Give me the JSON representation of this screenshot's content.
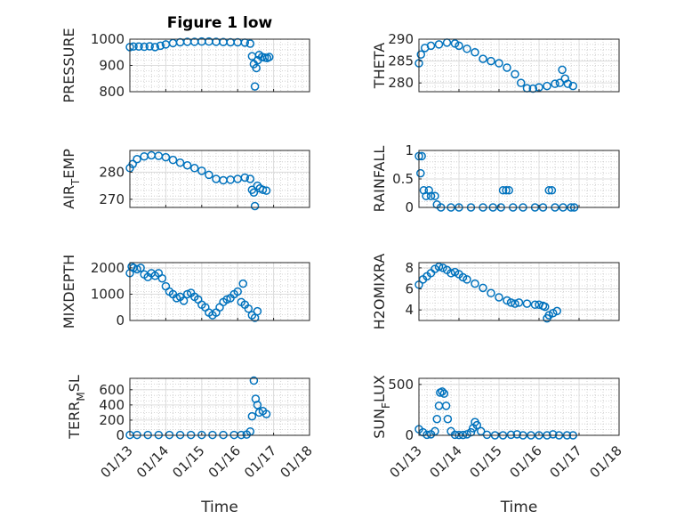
{
  "figure": {
    "title": "Figure 1 low",
    "marker_color": "#0072BD"
  },
  "chart_data": [
    {
      "type": "scatter",
      "title": "Figure 1 low",
      "ylabel": "PRESSURE",
      "xlabel": "",
      "ylim": [
        800,
        1000
      ],
      "yticks": [
        800,
        900,
        1000
      ],
      "xlim": [
        "01/13",
        "01/18"
      ],
      "xticks": [
        "01/13",
        "01/14",
        "01/15",
        "01/16",
        "01/17",
        "01/18"
      ],
      "grid": "minor-dotted",
      "points": [
        [
          0.0,
          970
        ],
        [
          0.1,
          972
        ],
        [
          0.25,
          972
        ],
        [
          0.4,
          971
        ],
        [
          0.55,
          973
        ],
        [
          0.7,
          970
        ],
        [
          0.85,
          975
        ],
        [
          1.0,
          980
        ],
        [
          1.2,
          985
        ],
        [
          1.4,
          988
        ],
        [
          1.6,
          990
        ],
        [
          1.8,
          990
        ],
        [
          2.0,
          991
        ],
        [
          2.2,
          991
        ],
        [
          2.4,
          990
        ],
        [
          2.6,
          989
        ],
        [
          2.8,
          988
        ],
        [
          3.0,
          988
        ],
        [
          3.2,
          987
        ],
        [
          3.35,
          983
        ],
        [
          3.4,
          935
        ],
        [
          3.45,
          905
        ],
        [
          3.48,
          820
        ],
        [
          3.52,
          890
        ],
        [
          3.56,
          920
        ],
        [
          3.6,
          940
        ],
        [
          3.68,
          932
        ],
        [
          3.75,
          930
        ],
        [
          3.82,
          928
        ],
        [
          3.88,
          932
        ]
      ]
    },
    {
      "type": "scatter",
      "ylabel": "THETA",
      "xlabel": "",
      "ylim": [
        278,
        290
      ],
      "yticks": [
        280,
        285,
        290
      ],
      "xlim": [
        "01/13",
        "01/18"
      ],
      "xticks": [
        "01/13",
        "01/14",
        "01/15",
        "01/16",
        "01/17",
        "01/18"
      ],
      "grid": "minor-dotted",
      "points": [
        [
          0.0,
          284.5
        ],
        [
          0.05,
          286.5
        ],
        [
          0.15,
          288
        ],
        [
          0.3,
          288.5
        ],
        [
          0.5,
          288.8
        ],
        [
          0.7,
          289.2
        ],
        [
          0.9,
          289.0
        ],
        [
          1.0,
          288.5
        ],
        [
          1.2,
          287.8
        ],
        [
          1.4,
          287.0
        ],
        [
          1.6,
          285.5
        ],
        [
          1.8,
          285.0
        ],
        [
          2.0,
          284.5
        ],
        [
          2.2,
          283.5
        ],
        [
          2.4,
          282.0
        ],
        [
          2.55,
          280.0
        ],
        [
          2.7,
          278.8
        ],
        [
          2.85,
          278.7
        ],
        [
          3.0,
          279.0
        ],
        [
          3.2,
          279.3
        ],
        [
          3.4,
          279.8
        ],
        [
          3.52,
          280.0
        ],
        [
          3.58,
          283.0
        ],
        [
          3.65,
          281.0
        ],
        [
          3.72,
          279.8
        ],
        [
          3.85,
          279.3
        ]
      ]
    },
    {
      "type": "scatter",
      "ylabel": "AIR_TEMP",
      "xlabel": "",
      "ylim": [
        267,
        288
      ],
      "yticks": [
        270,
        280
      ],
      "xlim": [
        "01/13",
        "01/18"
      ],
      "xticks": [
        "01/13",
        "01/14",
        "01/15",
        "01/16",
        "01/17",
        "01/18"
      ],
      "grid": "minor-dotted",
      "points": [
        [
          0.0,
          281.5
        ],
        [
          0.08,
          283.0
        ],
        [
          0.2,
          284.8
        ],
        [
          0.4,
          285.8
        ],
        [
          0.6,
          286.2
        ],
        [
          0.8,
          286.0
        ],
        [
          1.0,
          285.5
        ],
        [
          1.2,
          284.5
        ],
        [
          1.4,
          283.5
        ],
        [
          1.6,
          282.5
        ],
        [
          1.8,
          281.5
        ],
        [
          2.0,
          280.5
        ],
        [
          2.2,
          279.0
        ],
        [
          2.4,
          277.5
        ],
        [
          2.6,
          277.0
        ],
        [
          2.8,
          277.2
        ],
        [
          3.0,
          277.5
        ],
        [
          3.2,
          278.0
        ],
        [
          3.35,
          277.5
        ],
        [
          3.4,
          273.5
        ],
        [
          3.45,
          272.5
        ],
        [
          3.48,
          267.5
        ],
        [
          3.55,
          275.0
        ],
        [
          3.62,
          274.0
        ],
        [
          3.7,
          273.5
        ],
        [
          3.8,
          273.2
        ]
      ]
    },
    {
      "type": "scatter",
      "ylabel": "RAINFALL",
      "xlabel": "",
      "ylim": [
        0,
        1
      ],
      "yticks": [
        0,
        0.5,
        1
      ],
      "xlim": [
        "01/13",
        "01/18"
      ],
      "xticks": [
        "01/13",
        "01/14",
        "01/15",
        "01/16",
        "01/17",
        "01/18"
      ],
      "grid": "minor-dotted",
      "points": [
        [
          0.0,
          0.9
        ],
        [
          0.04,
          0.6
        ],
        [
          0.07,
          0.9
        ],
        [
          0.12,
          0.3
        ],
        [
          0.18,
          0.2
        ],
        [
          0.25,
          0.3
        ],
        [
          0.3,
          0.2
        ],
        [
          0.4,
          0.2
        ],
        [
          0.45,
          0.05
        ],
        [
          0.55,
          0
        ],
        [
          0.8,
          0
        ],
        [
          1.0,
          0
        ],
        [
          1.3,
          0
        ],
        [
          1.6,
          0
        ],
        [
          1.85,
          0
        ],
        [
          2.05,
          0
        ],
        [
          2.1,
          0.3
        ],
        [
          2.18,
          0.3
        ],
        [
          2.25,
          0.3
        ],
        [
          2.35,
          0
        ],
        [
          2.6,
          0
        ],
        [
          2.9,
          0
        ],
        [
          3.1,
          0
        ],
        [
          3.25,
          0.3
        ],
        [
          3.32,
          0.3
        ],
        [
          3.4,
          0
        ],
        [
          3.6,
          0
        ],
        [
          3.8,
          0
        ],
        [
          3.88,
          0
        ]
      ]
    },
    {
      "type": "scatter",
      "ylabel": "MIXDEPTH",
      "xlabel": "",
      "ylim": [
        0,
        2200
      ],
      "yticks": [
        0,
        1000,
        2000
      ],
      "xlim": [
        "01/13",
        "01/18"
      ],
      "xticks": [
        "01/13",
        "01/14",
        "01/15",
        "01/16",
        "01/17",
        "01/18"
      ],
      "grid": "minor-dotted",
      "points": [
        [
          0.0,
          1800
        ],
        [
          0.05,
          2050
        ],
        [
          0.1,
          2000
        ],
        [
          0.2,
          1950
        ],
        [
          0.3,
          2000
        ],
        [
          0.4,
          1750
        ],
        [
          0.5,
          1650
        ],
        [
          0.6,
          1800
        ],
        [
          0.7,
          1700
        ],
        [
          0.8,
          1800
        ],
        [
          0.9,
          1600
        ],
        [
          1.0,
          1300
        ],
        [
          1.1,
          1100
        ],
        [
          1.2,
          1000
        ],
        [
          1.3,
          850
        ],
        [
          1.4,
          900
        ],
        [
          1.5,
          750
        ],
        [
          1.6,
          1000
        ],
        [
          1.7,
          1050
        ],
        [
          1.8,
          900
        ],
        [
          1.9,
          800
        ],
        [
          2.0,
          600
        ],
        [
          2.1,
          500
        ],
        [
          2.2,
          300
        ],
        [
          2.3,
          200
        ],
        [
          2.4,
          300
        ],
        [
          2.5,
          500
        ],
        [
          2.6,
          700
        ],
        [
          2.7,
          800
        ],
        [
          2.8,
          850
        ],
        [
          2.9,
          1000
        ],
        [
          3.0,
          1100
        ],
        [
          3.1,
          700
        ],
        [
          3.15,
          1400
        ],
        [
          3.2,
          600
        ],
        [
          3.3,
          450
        ],
        [
          3.4,
          200
        ],
        [
          3.48,
          100
        ],
        [
          3.55,
          350
        ]
      ]
    },
    {
      "type": "scatter",
      "ylabel": "H2OMIXRA",
      "xlabel": "",
      "ylim": [
        3,
        8.5
      ],
      "yticks": [
        4,
        6,
        8
      ],
      "xlim": [
        "01/13",
        "01/18"
      ],
      "xticks": [
        "01/13",
        "01/14",
        "01/15",
        "01/16",
        "01/17",
        "01/18"
      ],
      "grid": "minor-dotted",
      "points": [
        [
          0.0,
          6.4
        ],
        [
          0.1,
          6.9
        ],
        [
          0.2,
          7.2
        ],
        [
          0.3,
          7.5
        ],
        [
          0.4,
          7.9
        ],
        [
          0.5,
          8.1
        ],
        [
          0.6,
          8.0
        ],
        [
          0.7,
          7.8
        ],
        [
          0.8,
          7.5
        ],
        [
          0.9,
          7.6
        ],
        [
          1.0,
          7.4
        ],
        [
          1.1,
          7.1
        ],
        [
          1.2,
          6.9
        ],
        [
          1.4,
          6.5
        ],
        [
          1.6,
          6.1
        ],
        [
          1.8,
          5.6
        ],
        [
          2.0,
          5.2
        ],
        [
          2.2,
          4.9
        ],
        [
          2.3,
          4.7
        ],
        [
          2.4,
          4.6
        ],
        [
          2.5,
          4.7
        ],
        [
          2.7,
          4.6
        ],
        [
          2.9,
          4.5
        ],
        [
          3.0,
          4.5
        ],
        [
          3.1,
          4.4
        ],
        [
          3.15,
          4.3
        ],
        [
          3.2,
          3.2
        ],
        [
          3.25,
          3.5
        ],
        [
          3.35,
          3.7
        ],
        [
          3.45,
          3.9
        ]
      ]
    },
    {
      "type": "scatter",
      "ylabel": "TERR_MSL",
      "xlabel": "Time",
      "ylim": [
        0,
        750
      ],
      "yticks": [
        0,
        200,
        400,
        600
      ],
      "xlim": [
        "01/13",
        "01/18"
      ],
      "xticks": [
        "01/13",
        "01/14",
        "01/15",
        "01/16",
        "01/17",
        "01/18"
      ],
      "grid": "minor-dotted",
      "points": [
        [
          0.0,
          5
        ],
        [
          0.2,
          5
        ],
        [
          0.5,
          5
        ],
        [
          0.8,
          5
        ],
        [
          1.1,
          5
        ],
        [
          1.4,
          5
        ],
        [
          1.7,
          5
        ],
        [
          2.0,
          5
        ],
        [
          2.3,
          5
        ],
        [
          2.6,
          5
        ],
        [
          2.9,
          5
        ],
        [
          3.1,
          5
        ],
        [
          3.25,
          10
        ],
        [
          3.35,
          50
        ],
        [
          3.4,
          250
        ],
        [
          3.45,
          720
        ],
        [
          3.5,
          480
        ],
        [
          3.55,
          400
        ],
        [
          3.6,
          300
        ],
        [
          3.7,
          320
        ],
        [
          3.8,
          280
        ]
      ]
    },
    {
      "type": "scatter",
      "ylabel": "SUN_FLUX",
      "xlabel": "Time",
      "ylim": [
        0,
        560
      ],
      "yticks": [
        0,
        500
      ],
      "xlim": [
        "01/13",
        "01/18"
      ],
      "xticks": [
        "01/13",
        "01/14",
        "01/15",
        "01/16",
        "01/17",
        "01/18"
      ],
      "grid": "minor-dotted",
      "points": [
        [
          0.0,
          60
        ],
        [
          0.1,
          30
        ],
        [
          0.2,
          5
        ],
        [
          0.3,
          10
        ],
        [
          0.4,
          40
        ],
        [
          0.45,
          160
        ],
        [
          0.5,
          290
        ],
        [
          0.53,
          420
        ],
        [
          0.58,
          430
        ],
        [
          0.63,
          410
        ],
        [
          0.68,
          290
        ],
        [
          0.72,
          160
        ],
        [
          0.8,
          40
        ],
        [
          0.9,
          5
        ],
        [
          1.0,
          3
        ],
        [
          1.1,
          3
        ],
        [
          1.2,
          10
        ],
        [
          1.3,
          30
        ],
        [
          1.35,
          70
        ],
        [
          1.4,
          130
        ],
        [
          1.45,
          100
        ],
        [
          1.55,
          40
        ],
        [
          1.7,
          5
        ],
        [
          1.9,
          0
        ],
        [
          2.1,
          0
        ],
        [
          2.3,
          5
        ],
        [
          2.45,
          10
        ],
        [
          2.6,
          0
        ],
        [
          2.8,
          0
        ],
        [
          3.0,
          0
        ],
        [
          3.2,
          0
        ],
        [
          3.35,
          10
        ],
        [
          3.5,
          0
        ],
        [
          3.7,
          0
        ],
        [
          3.85,
          0
        ]
      ]
    }
  ]
}
